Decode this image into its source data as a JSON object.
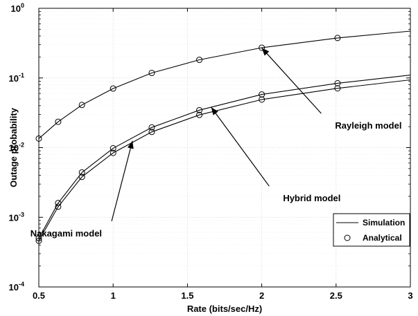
{
  "chart_data": {
    "type": "line",
    "title": "",
    "xlabel": "Rate (bits/sec/Hz)",
    "ylabel": "Outage probability",
    "xlim": [
      0.5,
      3
    ],
    "ylim": [
      0.0001,
      1
    ],
    "yscale": "log",
    "grid": true,
    "x_ticks": [
      0.5,
      1,
      1.5,
      2,
      2.5,
      3
    ],
    "x_tick_labels": [
      "0.5",
      "1",
      "1.5",
      "2",
      "2.5",
      "3"
    ],
    "y_ticks": [
      {
        "value": 0.0001,
        "base": "10",
        "exp": "-4"
      },
      {
        "value": 0.001,
        "base": "10",
        "exp": "-3"
      },
      {
        "value": 0.01,
        "base": "10",
        "exp": "-2"
      },
      {
        "value": 0.1,
        "base": "10",
        "exp": "-1"
      },
      {
        "value": 1,
        "base": "10",
        "exp": "0"
      }
    ],
    "x": [
      0.5,
      0.63,
      0.79,
      1.0,
      1.26,
      1.58,
      2.0,
      2.51,
      3.0
    ],
    "series": [
      {
        "values": [
          0.0135,
          0.0235,
          0.041,
          0.0705,
          0.118,
          0.182,
          0.272,
          0.375,
          0.47
        ],
        "marker_indices": [
          0,
          1,
          2,
          3,
          4,
          5,
          6,
          7
        ]
      },
      {
        "values": [
          0.0005,
          0.0016,
          0.0044,
          0.0098,
          0.0195,
          0.0345,
          0.058,
          0.084,
          0.11
        ],
        "marker_indices": [
          0,
          1,
          2,
          3,
          4,
          5,
          6,
          7
        ]
      },
      {
        "values": [
          0.00046,
          0.00142,
          0.0038,
          0.0084,
          0.0168,
          0.0295,
          0.049,
          0.071,
          0.094
        ],
        "marker_indices": [
          0,
          1,
          2,
          3,
          4,
          5,
          6,
          7
        ]
      }
    ],
    "annotations": [
      {
        "text": "Rayleigh model",
        "target": {
          "x": 2.0,
          "y": 0.27
        },
        "from": {
          "x": 2.4,
          "y": 0.031
        },
        "label_pos": "right"
      },
      {
        "text": "Hybrid model",
        "target": {
          "x": 1.66,
          "y": 0.038
        },
        "from": {
          "x": 2.05,
          "y": 0.0028
        },
        "label_pos": "right"
      },
      {
        "text": "Nakagami model",
        "target": {
          "x": 1.13,
          "y": 0.0125
        },
        "from": {
          "x": 0.99,
          "y": 0.00088
        },
        "label_pos": "left"
      }
    ],
    "legend": {
      "position": "lower-right",
      "entries": [
        {
          "label": "Simulation",
          "symbol": "line"
        },
        {
          "label": "Analytical",
          "symbol": "circle"
        }
      ]
    }
  }
}
